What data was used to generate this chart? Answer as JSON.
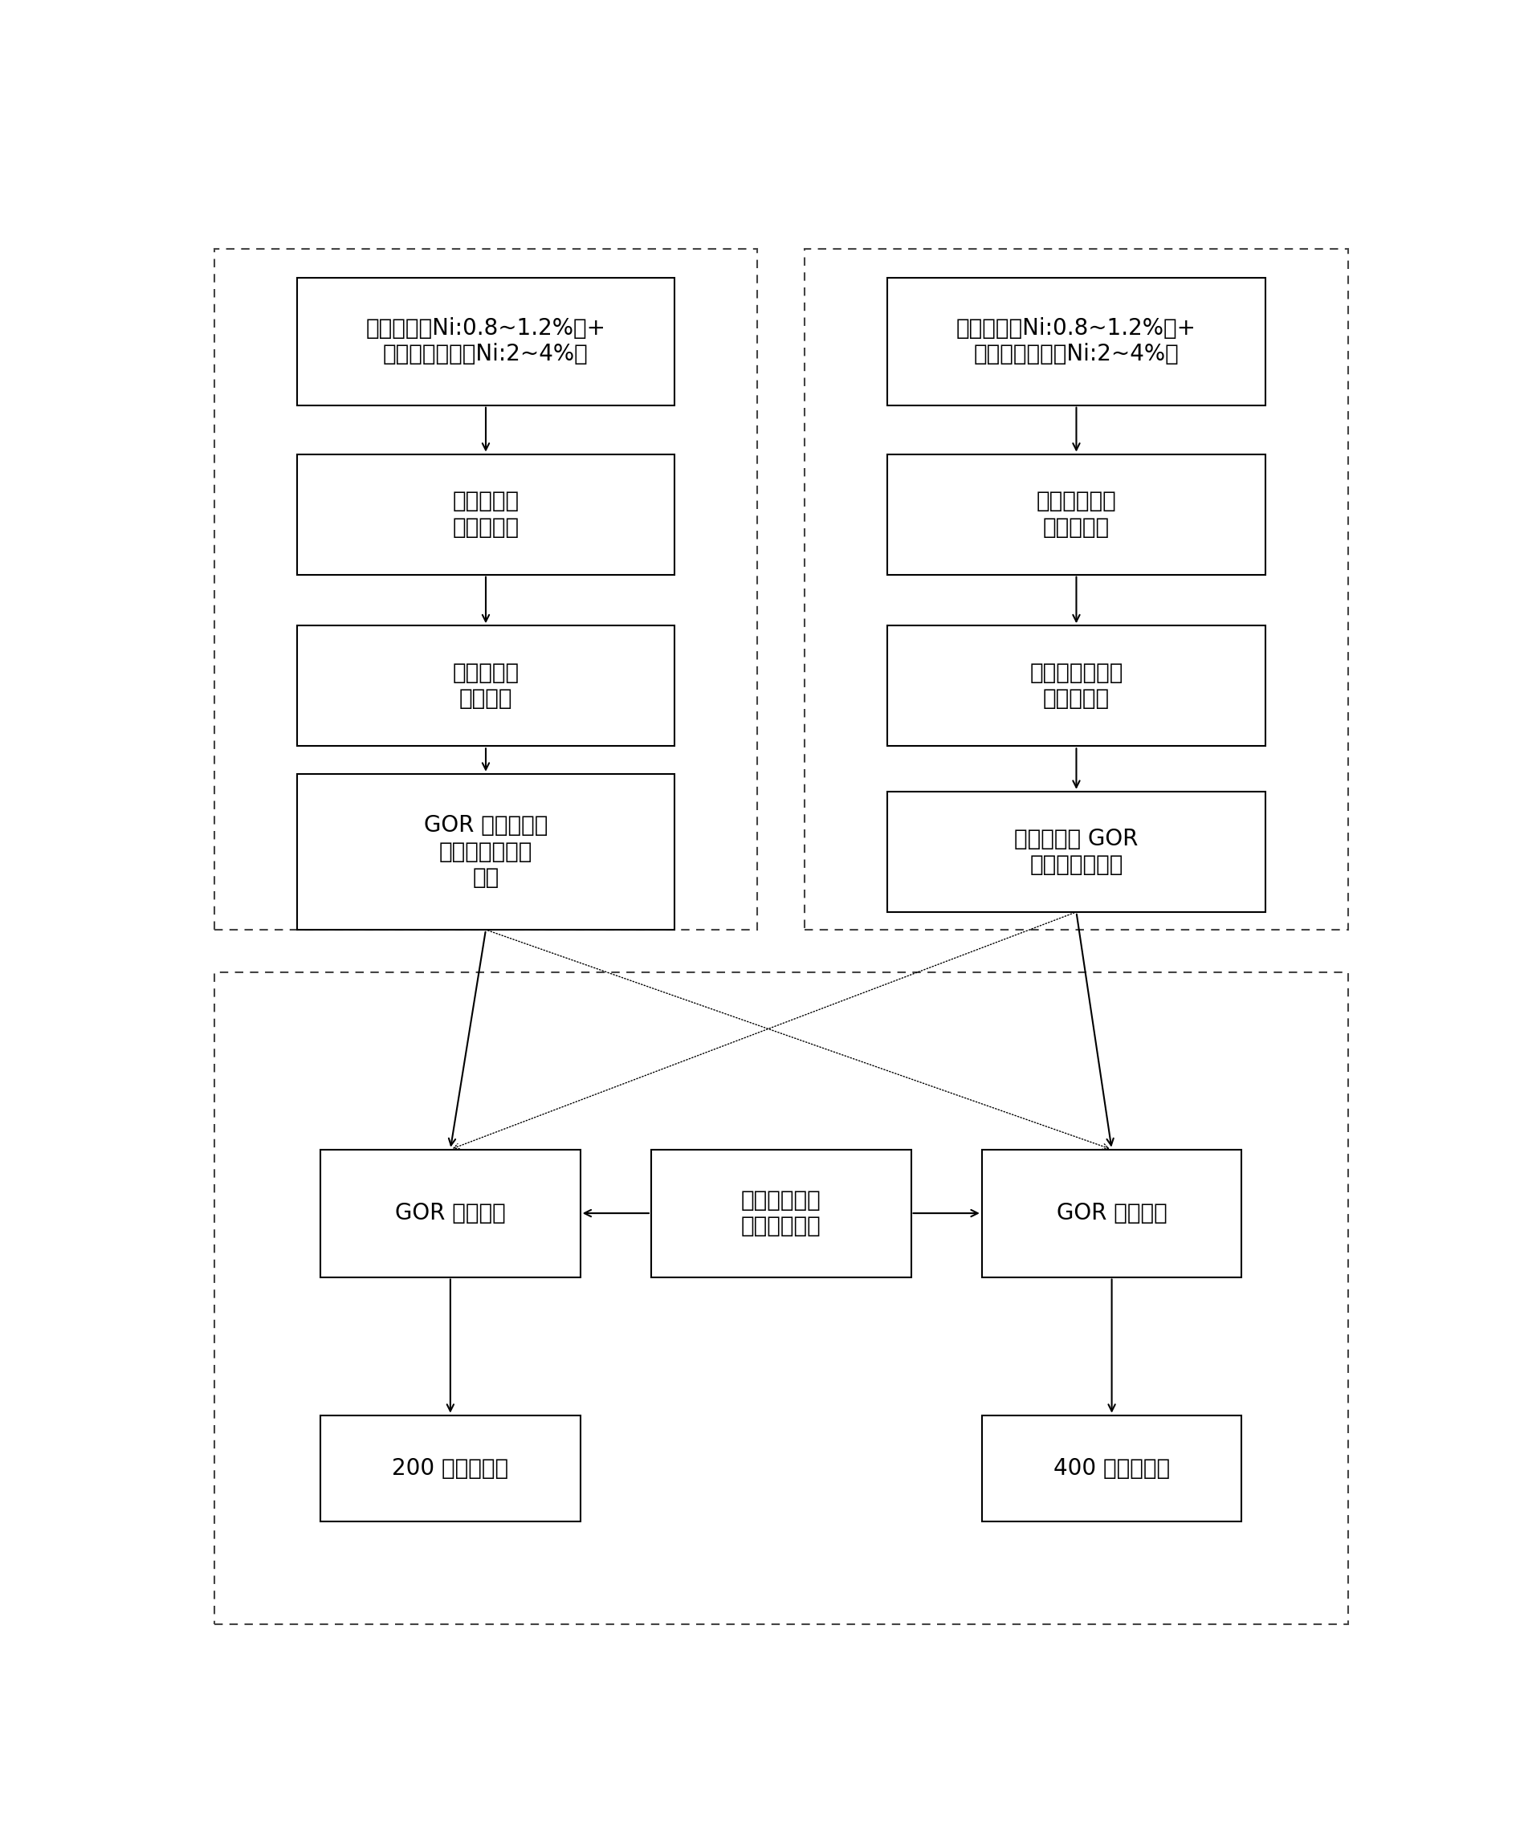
{
  "fig_width": 18.98,
  "fig_height": 22.93,
  "bg_color": "#ffffff",
  "top_left_box1": "红土镍矿（Ni:0.8~1.2%）+\n富集氧化镍矿（Ni:2~4%）",
  "top_left_box2": "经结烧机烧\n结成烧结矿",
  "top_left_box3": "经高炉冶炼\n铬镍铁水",
  "top_left_box4": "GOR 转炉脱硅、\n脱磷制成不锈钢\n母液",
  "top_right_box1": "红土镍矿（Ni:0.8~1.2%）+\n富集氧化镍矿（Ni:2~4%）",
  "top_right_box2": "经回转窑还原\n焙烧成镍渣",
  "top_right_box3": "经矿热炉熔炼成\n粗制镍铁水",
  "top_right_box4": "经酸、碱性 GOR\n转炉脱硅、脱磷",
  "bottom_left_box1": "GOR 转炉冶炼",
  "bottom_center_box": "经中频炉熔化\n高碳铬铁水水",
  "bottom_right_box1": "GOR 转炉冶炼",
  "bottom_left_box2": "200 系列不锈钢",
  "bottom_right_box2": "400 系列不锈钢",
  "font_size": 20
}
